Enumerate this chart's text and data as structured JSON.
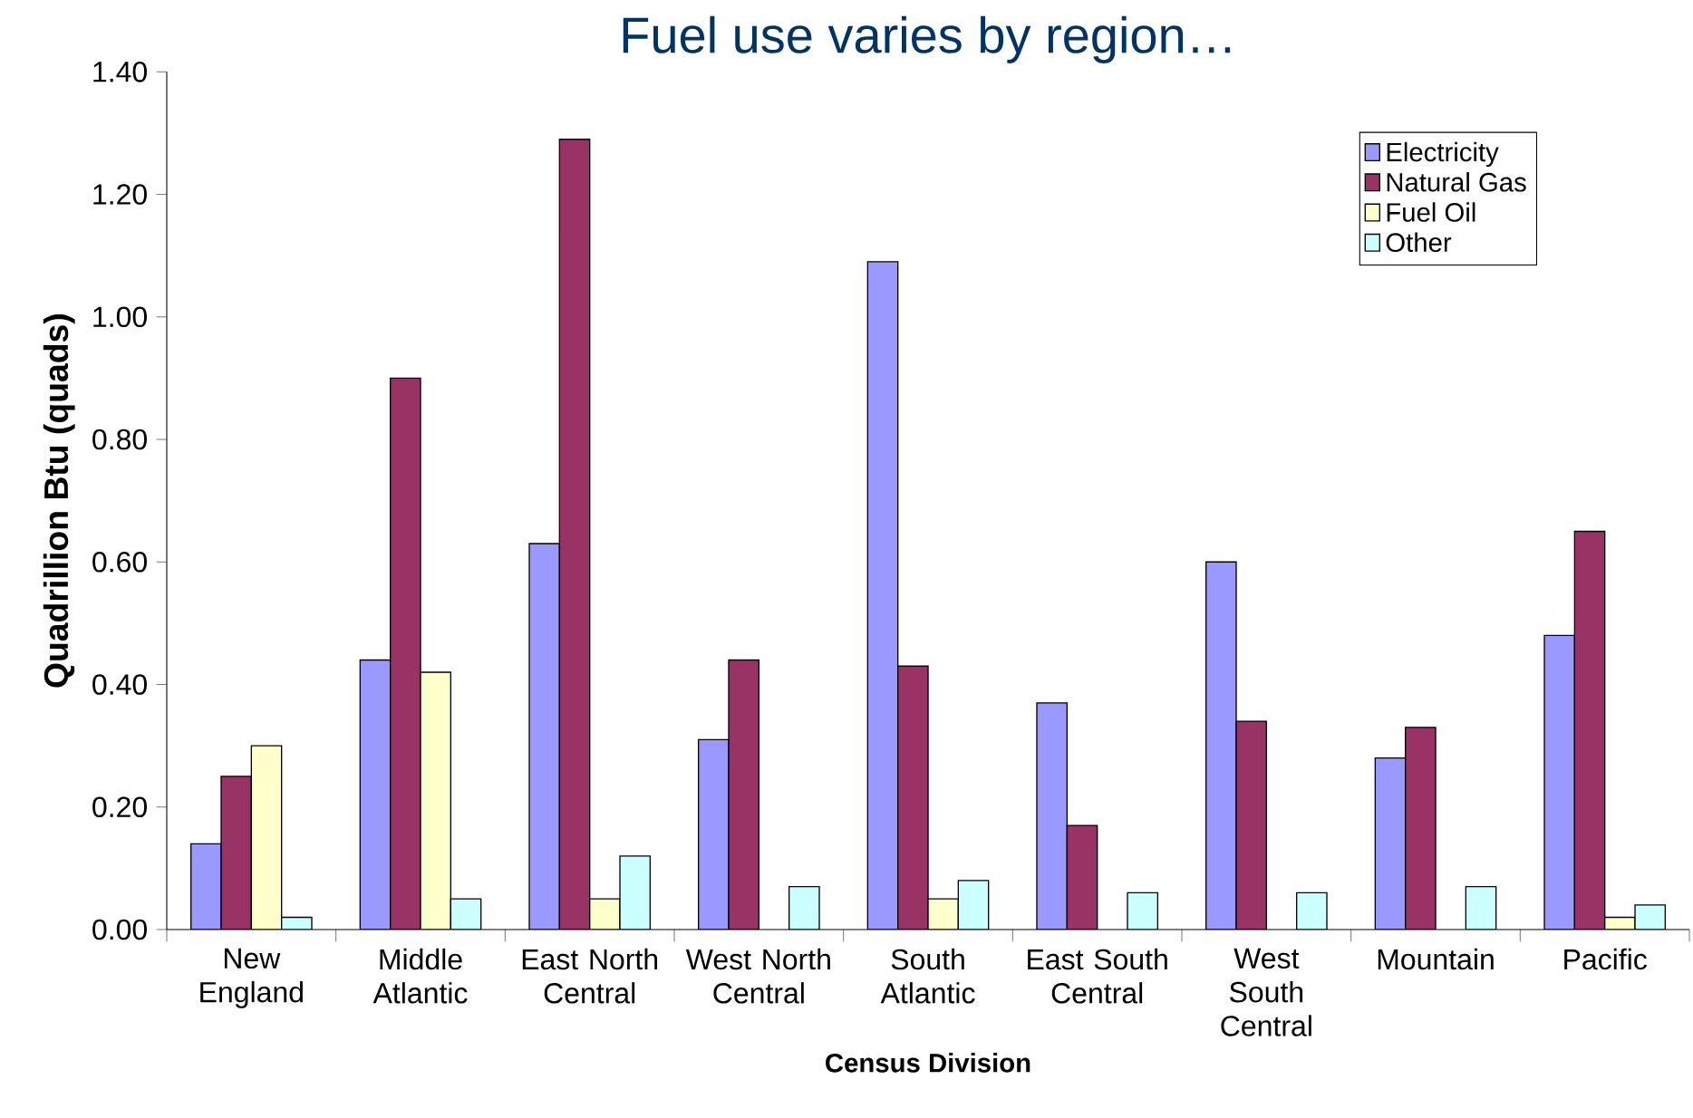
{
  "chart_data": {
    "type": "bar",
    "title": "Fuel use varies by region…",
    "xlabel": "Census Division",
    "ylabel": "Quadrillion Btu (quads)",
    "categories": [
      "New England",
      "Middle Atlantic",
      "East North Central",
      "West North Central",
      "South Atlantic",
      "East South Central",
      "West South Central",
      "Mountain",
      "Pacific"
    ],
    "series": [
      {
        "name": "Electricity",
        "color": "#9999ff",
        "values": [
          0.14,
          0.44,
          0.63,
          0.31,
          1.09,
          0.37,
          0.6,
          0.28,
          0.48
        ]
      },
      {
        "name": "Natural Gas",
        "color": "#993366",
        "values": [
          0.25,
          0.9,
          1.29,
          0.44,
          0.43,
          0.17,
          0.34,
          0.33,
          0.65
        ]
      },
      {
        "name": "Fuel Oil",
        "color": "#ffffcc",
        "values": [
          0.3,
          0.42,
          0.05,
          null,
          0.05,
          null,
          null,
          null,
          0.02
        ]
      },
      {
        "name": "Other",
        "color": "#ccffff",
        "values": [
          0.02,
          0.05,
          0.12,
          0.07,
          0.08,
          0.06,
          0.06,
          0.07,
          0.04
        ]
      }
    ],
    "ylim": [
      0,
      1.4
    ],
    "yticks": [
      {
        "value": 0,
        "label": "0.00"
      },
      {
        "value": 0.2,
        "label": "0.20"
      },
      {
        "value": 0.4,
        "label": "0.40"
      },
      {
        "value": 0.6,
        "label": "0.60"
      },
      {
        "value": 0.8,
        "label": "0.80"
      },
      {
        "value": 1.0,
        "label": "1.00"
      },
      {
        "value": 1.2,
        "label": "1.20"
      },
      {
        "value": 1.4,
        "label": "1.40"
      }
    ],
    "legend": "top right",
    "grid": false
  }
}
